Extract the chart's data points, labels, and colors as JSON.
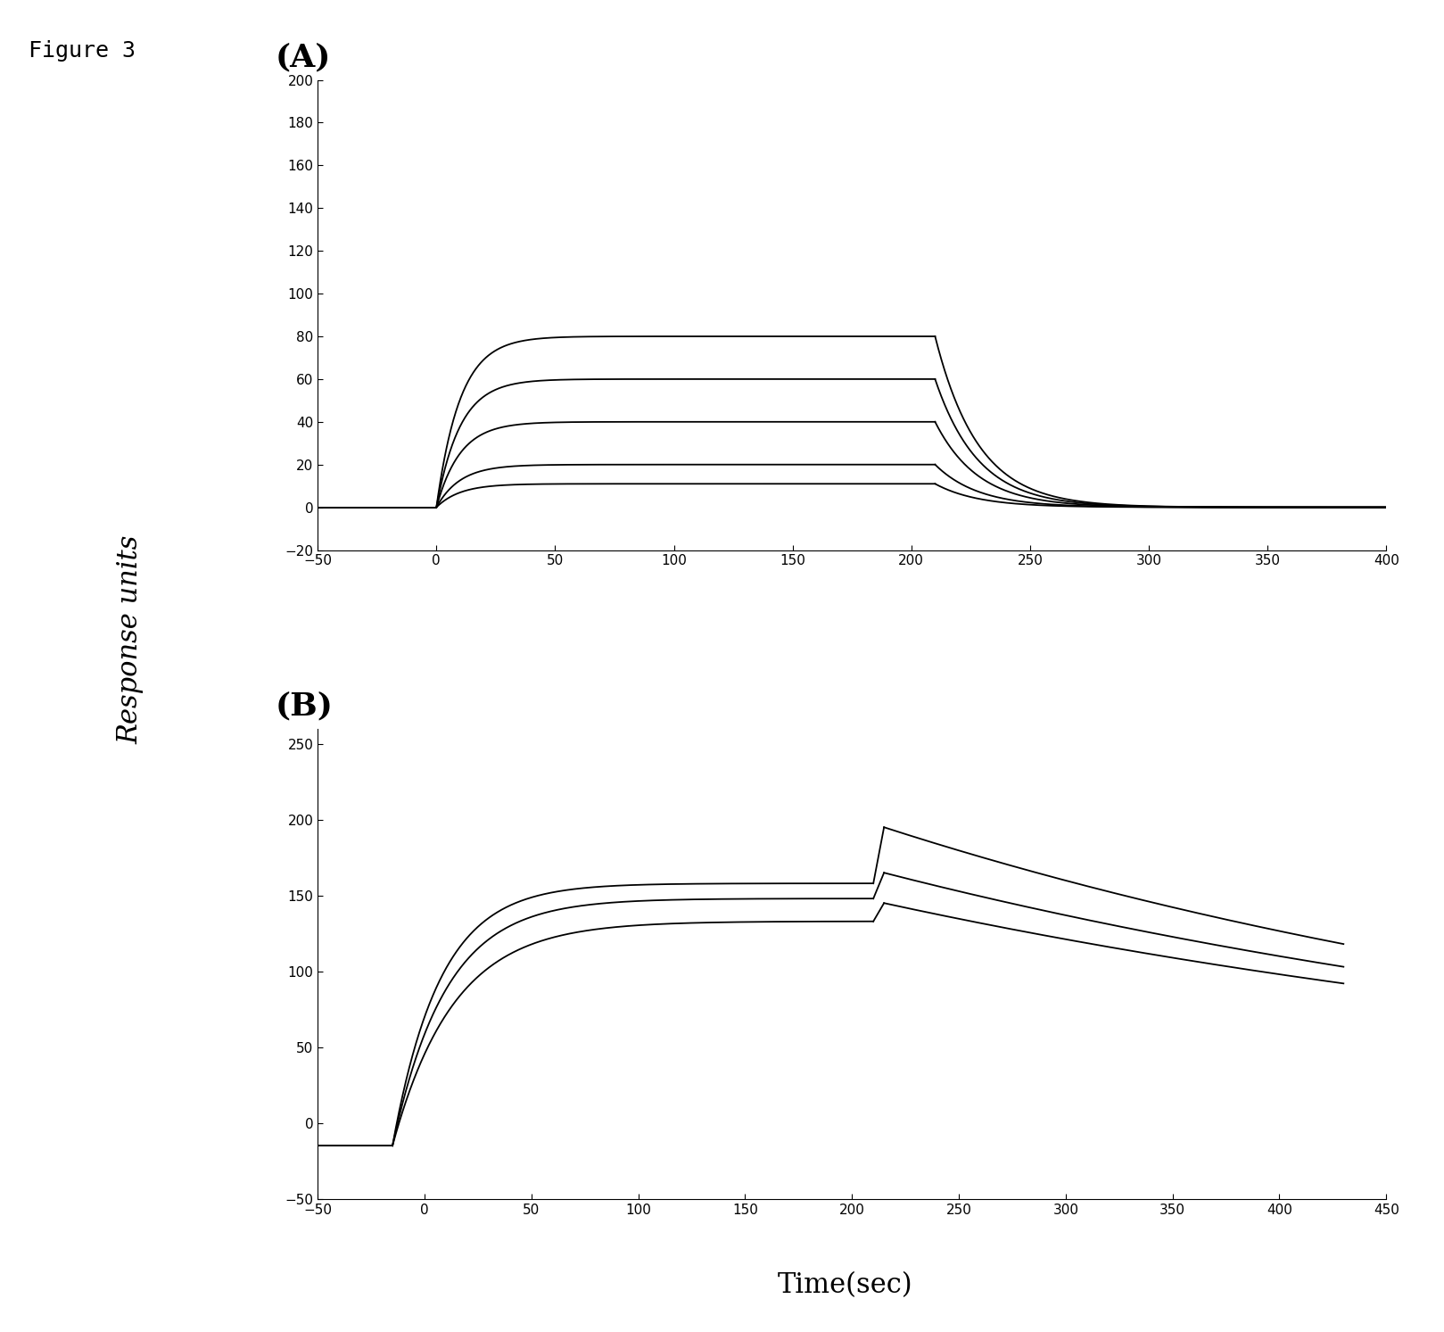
{
  "figure_label": "Figure 3",
  "panel_A_label": "(A)",
  "panel_B_label": "(B)",
  "ylabel": "Response units",
  "xlabel": "Time(sec)",
  "line_color": "#000000",
  "background_color": "#ffffff",
  "panel_A": {
    "xlim": [
      -50,
      400
    ],
    "ylim": [
      -20,
      200
    ],
    "xticks": [
      -50,
      0,
      50,
      100,
      150,
      200,
      250,
      300,
      350,
      400
    ],
    "yticks": [
      -20,
      0,
      20,
      40,
      60,
      80,
      100,
      120,
      140,
      160,
      180,
      200
    ],
    "association_start": 0,
    "association_end": 210,
    "dissociation_end": 400,
    "curves": [
      {
        "plateau": 80,
        "ka": 0.1,
        "kd": 0.055,
        "lw": 1.3
      },
      {
        "plateau": 60,
        "ka": 0.1,
        "kd": 0.055,
        "lw": 1.3
      },
      {
        "plateau": 40,
        "ka": 0.1,
        "kd": 0.055,
        "lw": 1.3
      },
      {
        "plateau": 20,
        "ka": 0.1,
        "kd": 0.055,
        "lw": 1.3
      },
      {
        "plateau": 11,
        "ka": 0.1,
        "kd": 0.055,
        "lw": 1.3
      }
    ]
  },
  "panel_B": {
    "xlim": [
      -50,
      430
    ],
    "ylim": [
      -50,
      260
    ],
    "xticks": [
      -50,
      0,
      50,
      100,
      150,
      200,
      250,
      300,
      350,
      400,
      450
    ],
    "yticks": [
      -50,
      0,
      50,
      100,
      150,
      200,
      250
    ],
    "baseline_val": -15,
    "baseline_start": -50,
    "association_start": -15,
    "association_end": 210,
    "peak_time": 215,
    "dissociation_end": 430,
    "curves": [
      {
        "plateau": 158,
        "peak": 195,
        "end_val": 118,
        "ka": 0.045,
        "kd": 0.0055,
        "lw": 1.3
      },
      {
        "plateau": 148,
        "peak": 165,
        "end_val": 103,
        "ka": 0.04,
        "kd": 0.0055,
        "lw": 1.3
      },
      {
        "plateau": 133,
        "peak": 145,
        "end_val": 92,
        "ka": 0.035,
        "kd": 0.0055,
        "lw": 1.3
      }
    ]
  }
}
